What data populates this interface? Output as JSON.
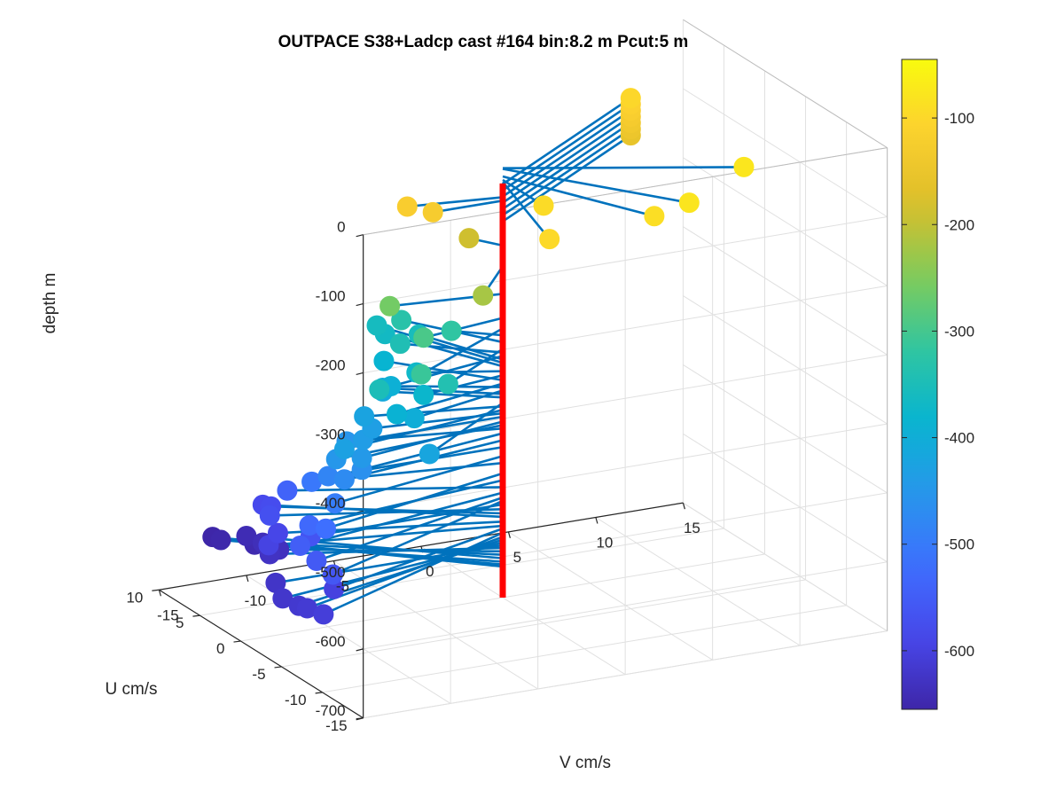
{
  "chart_data": {
    "type": "scatter3d",
    "title": "OUTPACE S38+Ladcp cast #164 bin:8.2 m  Pcut:5 m",
    "xlabel": "V cm/s",
    "ylabel": "U cm/s",
    "zlabel": "depth m",
    "xlim": [
      -15,
      15
    ],
    "ylim": [
      -15,
      10
    ],
    "zlim": [
      -700,
      0
    ],
    "x_ticks": [
      "-15",
      "-10",
      "-5",
      "0",
      "5",
      "10",
      "15"
    ],
    "y_ticks": [
      "-15",
      "-10",
      "-5",
      "0",
      "5",
      "10"
    ],
    "z_ticks": [
      "0",
      "-100",
      "-200",
      "-300",
      "-400",
      "-500",
      "-600",
      "-700"
    ],
    "colorbar": {
      "colormap": "parula",
      "min": -655,
      "max": -45,
      "ticks": [
        "-100",
        "-200",
        "-300",
        "-400",
        "-500",
        "-600"
      ],
      "tick_values": [
        -100,
        -200,
        -300,
        -400,
        -500,
        -600
      ]
    },
    "grid": true,
    "stems": {
      "color": "#0072bd",
      "from_axis": "V=0,U=0"
    },
    "reference_line": {
      "color": "#ff0000",
      "v": 0,
      "u": 0,
      "depth_range": [
        -100,
        -700
      ]
    },
    "points": [
      {
        "depth": -101,
        "u": 10,
        "v": 12
      },
      {
        "depth": -110,
        "u": 10,
        "v": 12
      },
      {
        "depth": -119,
        "u": 10,
        "v": 12
      },
      {
        "depth": -128,
        "u": 10,
        "v": 12
      },
      {
        "depth": -137,
        "u": 10,
        "v": 12
      },
      {
        "depth": -146,
        "u": 10,
        "v": 12
      },
      {
        "depth": -155,
        "u": 10,
        "v": 12
      },
      {
        "depth": -78,
        "u": -6,
        "v": 11
      },
      {
        "depth": -79,
        "u": -10,
        "v": 6
      },
      {
        "depth": -90,
        "u": -10,
        "v": 4
      },
      {
        "depth": -95,
        "u": -5,
        "v": 0
      },
      {
        "depth": -98,
        "u": -10,
        "v": -2
      },
      {
        "depth": -120,
        "u": 1,
        "v": -5
      },
      {
        "depth": -125,
        "u": 0,
        "v": -4
      },
      {
        "depth": -190,
        "u": 2,
        "v": -1
      },
      {
        "depth": -220,
        "u": -4,
        "v": -3
      },
      {
        "depth": -260,
        "u": 1,
        "v": -6
      },
      {
        "depth": -295,
        "u": -1,
        "v": -5
      },
      {
        "depth": -310,
        "u": -5,
        "v": -7
      },
      {
        "depth": -320,
        "u": 2,
        "v": -2
      },
      {
        "depth": -330,
        "u": 6,
        "v": -3
      },
      {
        "depth": -340,
        "u": -4,
        "v": -5
      },
      {
        "depth": -345,
        "u": 4,
        "v": -4
      },
      {
        "depth": -350,
        "u": -2,
        "v": -8
      },
      {
        "depth": -355,
        "u": 6,
        "v": -2
      },
      {
        "depth": -360,
        "u": 9,
        "v": -3
      },
      {
        "depth": -365,
        "u": 8,
        "v": -3
      },
      {
        "depth": -372,
        "u": 2,
        "v": -4
      },
      {
        "depth": -378,
        "u": -1,
        "v": -5
      },
      {
        "depth": -385,
        "u": 6,
        "v": -4
      },
      {
        "depth": -390,
        "u": -2,
        "v": -7
      },
      {
        "depth": -395,
        "u": 3,
        "v": -5
      },
      {
        "depth": -400,
        "u": -2,
        "v": -6
      },
      {
        "depth": -405,
        "u": 4,
        "v": -5
      },
      {
        "depth": -410,
        "u": 4,
        "v": -5
      },
      {
        "depth": -418,
        "u": -6,
        "v": -7
      },
      {
        "depth": -423,
        "u": 2,
        "v": -7
      },
      {
        "depth": -428,
        "u": -2,
        "v": -10
      },
      {
        "depth": -433,
        "u": 1,
        "v": -7
      },
      {
        "depth": -438,
        "u": 0,
        "v": -8
      },
      {
        "depth": -445,
        "u": -2,
        "v": -9
      },
      {
        "depth": -450,
        "u": -1,
        "v": -10
      },
      {
        "depth": -455,
        "u": 2,
        "v": -8
      },
      {
        "depth": -462,
        "u": -2,
        "v": -9
      },
      {
        "depth": -472,
        "u": -2,
        "v": -10
      },
      {
        "depth": -482,
        "u": 0,
        "v": -10
      },
      {
        "depth": -495,
        "u": -3,
        "v": -11
      },
      {
        "depth": -505,
        "u": 2,
        "v": -10
      },
      {
        "depth": -520,
        "u": -4,
        "v": -12
      },
      {
        "depth": -530,
        "u": -2,
        "v": -12
      },
      {
        "depth": -540,
        "u": 5,
        "v": -10
      },
      {
        "depth": -548,
        "u": -3,
        "v": -13
      },
      {
        "depth": -555,
        "u": -5,
        "v": -13
      },
      {
        "depth": -560,
        "u": -7,
        "v": -13
      },
      {
        "depth": -565,
        "u": 0,
        "v": -11
      },
      {
        "depth": -572,
        "u": 5,
        "v": -11
      },
      {
        "depth": -578,
        "u": 7,
        "v": -10
      },
      {
        "depth": -583,
        "u": 8,
        "v": -10
      },
      {
        "depth": -590,
        "u": 4,
        "v": -11
      },
      {
        "depth": -596,
        "u": 3,
        "v": -12
      },
      {
        "depth": -600,
        "u": -5,
        "v": -12
      },
      {
        "depth": -606,
        "u": -8,
        "v": -14
      },
      {
        "depth": -612,
        "u": -6,
        "v": -14
      },
      {
        "depth": -616,
        "u": -5,
        "v": -14
      },
      {
        "depth": -620,
        "u": -3,
        "v": -14
      },
      {
        "depth": -624,
        "u": 0,
        "v": -13
      },
      {
        "depth": -628,
        "u": 5,
        "v": -11
      },
      {
        "depth": -633,
        "u": 6,
        "v": -10
      },
      {
        "depth": -638,
        "u": 8,
        "v": -10
      },
      {
        "depth": -643,
        "u": 10,
        "v": -10
      },
      {
        "depth": -648,
        "u": 9,
        "v": -10
      },
      {
        "depth": -652,
        "u": 11,
        "v": -11
      },
      {
        "depth": -655,
        "u": 12,
        "v": -11
      }
    ]
  }
}
